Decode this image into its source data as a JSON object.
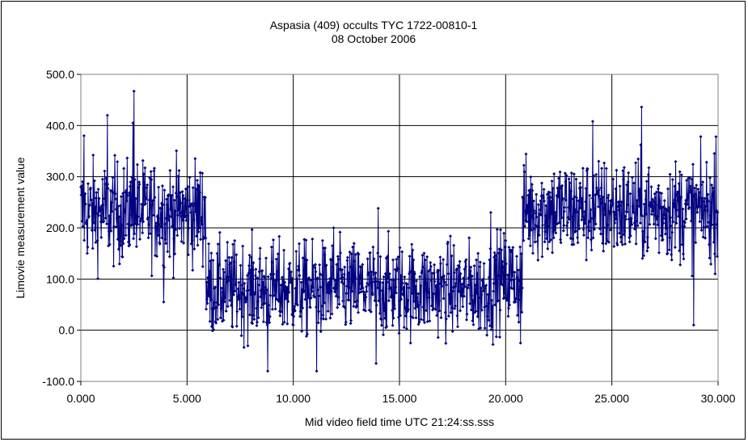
{
  "chart_data": {
    "type": "line",
    "title": "Aspasia (409) occults TYC 1722-00810-1",
    "subtitle": "08 October 2006",
    "xlabel": "Mid video field time UTC 21:24:ss.sss",
    "ylabel": "Limovie measurement value",
    "xlim": [
      0,
      30
    ],
    "ylim": [
      -100,
      500
    ],
    "x_ticks": [
      "0.000",
      "5.000",
      "10.000",
      "15.000",
      "20.000",
      "25.000",
      "30.000"
    ],
    "y_ticks": [
      "-100.0",
      "0.0",
      "100.0",
      "200.0",
      "300.0",
      "400.0",
      "500.0"
    ],
    "grid": true,
    "legend": "none",
    "series_color": "#000080",
    "marker": "diamond",
    "sampling_interval_s": 0.02,
    "segments": [
      {
        "x_start": 0.0,
        "x_end": 5.9,
        "baseline": 230,
        "spread": 65
      },
      {
        "x_start": 5.9,
        "x_end": 19.5,
        "baseline": 80,
        "spread": 60
      },
      {
        "x_start": 19.5,
        "x_end": 20.8,
        "baseline": 100,
        "spread": 60
      },
      {
        "x_start": 20.8,
        "x_end": 30.0,
        "baseline": 235,
        "spread": 65
      }
    ],
    "notable_points": [
      {
        "x": 0.15,
        "y": 380
      },
      {
        "x": 1.25,
        "y": 420
      },
      {
        "x": 2.5,
        "y": 467
      },
      {
        "x": 2.45,
        "y": 405
      },
      {
        "x": 3.9,
        "y": 55
      },
      {
        "x": 8.8,
        "y": -80
      },
      {
        "x": 11.1,
        "y": -80
      },
      {
        "x": 11.9,
        "y": 200
      },
      {
        "x": 13.9,
        "y": -65
      },
      {
        "x": 14.0,
        "y": 238
      },
      {
        "x": 19.3,
        "y": 230
      },
      {
        "x": 20.7,
        "y": -25
      },
      {
        "x": 24.1,
        "y": 408
      },
      {
        "x": 26.4,
        "y": 436
      },
      {
        "x": 28.85,
        "y": 10
      },
      {
        "x": 29.9,
        "y": 378
      }
    ]
  }
}
